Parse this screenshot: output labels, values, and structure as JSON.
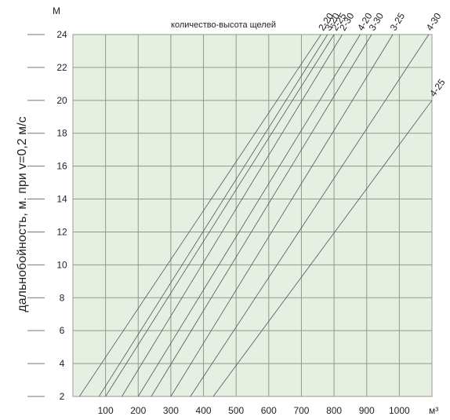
{
  "chart_data": {
    "type": "line",
    "title": "",
    "xlabel": "",
    "ylabel": "дальнобойность, м. при v=0,2 м/с",
    "y_unit_label": "М",
    "x_unit_label": "м³",
    "top_label": "количество-высота щелей",
    "x_ticks": [
      {
        "value": 100,
        "label": "100"
      },
      {
        "value": 200,
        "label": "200"
      },
      {
        "value": 300,
        "label": "300"
      },
      {
        "value": 400,
        "label": "400"
      },
      {
        "value": 500,
        "label": "500"
      },
      {
        "value": 600,
        "label": "600"
      },
      {
        "value": 700,
        "label": "700"
      },
      {
        "value": 800,
        "label": "800"
      },
      {
        "value": 900,
        "label": "900"
      },
      {
        "value": 1000,
        "label": "1000"
      }
    ],
    "y_ticks": [
      2,
      4,
      6,
      8,
      10,
      12,
      14,
      16,
      18,
      20,
      22,
      24
    ],
    "xlim": [
      0,
      1100
    ],
    "ylim": [
      2,
      24
    ],
    "grid": true,
    "series": [
      {
        "name": "2-20",
        "points": [
          [
            20,
            2
          ],
          [
            760,
            24
          ]
        ]
      },
      {
        "name": "3-20",
        "points": [
          [
            80,
            2
          ],
          [
            780,
            24
          ]
        ]
      },
      {
        "name": "2-25",
        "points": [
          [
            100,
            2
          ],
          [
            800,
            24
          ]
        ]
      },
      {
        "name": "2-30",
        "points": [
          [
            150,
            2
          ],
          [
            825,
            24
          ]
        ]
      },
      {
        "name": "4-20",
        "points": [
          [
            200,
            2
          ],
          [
            880,
            24
          ]
        ]
      },
      {
        "name": "3-30",
        "points": [
          [
            240,
            2
          ],
          [
            915,
            24
          ]
        ]
      },
      {
        "name": "3-25",
        "points": [
          [
            300,
            2
          ],
          [
            980,
            24
          ]
        ]
      },
      {
        "name": "4-30",
        "points": [
          [
            360,
            2
          ],
          [
            1090,
            24
          ]
        ]
      },
      {
        "name": "4-25",
        "points": [
          [
            430,
            2
          ],
          [
            1100,
            20
          ]
        ]
      }
    ]
  }
}
